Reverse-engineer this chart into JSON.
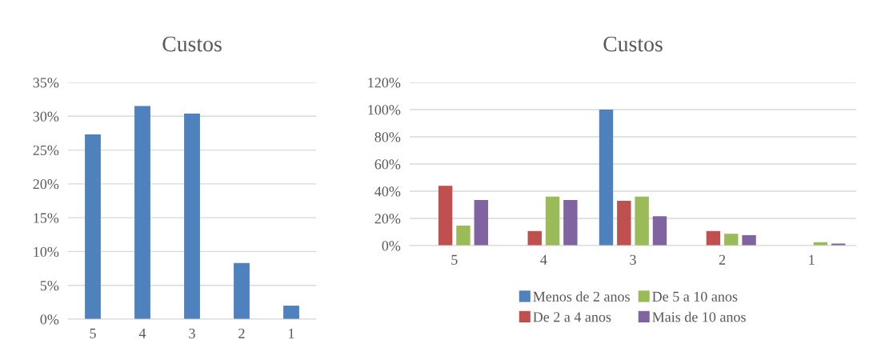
{
  "chart_data": [
    {
      "type": "bar",
      "title": "Custos",
      "categories": [
        "5",
        "4",
        "3",
        "2",
        "1"
      ],
      "values": [
        27.3,
        31.5,
        30.4,
        8.3,
        2.0
      ],
      "color": "#4f81bd",
      "ylim": [
        0,
        35
      ],
      "yticks": [
        {
          "value": 0,
          "label": "0%"
        },
        {
          "value": 5,
          "label": "5%"
        },
        {
          "value": 10,
          "label": "10%"
        },
        {
          "value": 15,
          "label": "15%"
        },
        {
          "value": 20,
          "label": "20%"
        },
        {
          "value": 25,
          "label": "25%"
        },
        {
          "value": 30,
          "label": "30%"
        },
        {
          "value": 35,
          "label": "35%"
        }
      ],
      "grid": "y",
      "legend": false
    },
    {
      "type": "bar",
      "title": "Custos",
      "categories": [
        "5",
        "4",
        "3",
        "2",
        "1"
      ],
      "series": [
        {
          "name": "Menos de 2 anos",
          "color": "#4f81bd",
          "values": [
            0,
            0,
            100,
            0,
            0
          ]
        },
        {
          "name": "De 2 a 4 anos",
          "color": "#c0504d",
          "values": [
            44.0,
            10.7,
            33.0,
            10.7,
            0
          ]
        },
        {
          "name": "De 5 a 10 anos",
          "color": "#9bbb59",
          "values": [
            14.7,
            36.0,
            36.0,
            8.7,
            2.5
          ]
        },
        {
          "name": "Mais de 10 anos",
          "color": "#8064a2",
          "values": [
            33.5,
            33.5,
            21.6,
            7.7,
            1.5
          ]
        }
      ],
      "ylim": [
        0,
        120
      ],
      "yticks": [
        {
          "value": 0,
          "label": "0%"
        },
        {
          "value": 20,
          "label": "20%"
        },
        {
          "value": 40,
          "label": "40%"
        },
        {
          "value": 60,
          "label": "60%"
        },
        {
          "value": 80,
          "label": "80%"
        },
        {
          "value": 100,
          "label": "100%"
        },
        {
          "value": 120,
          "label": "120%"
        }
      ],
      "grid": "y",
      "legend": "bottom"
    }
  ]
}
